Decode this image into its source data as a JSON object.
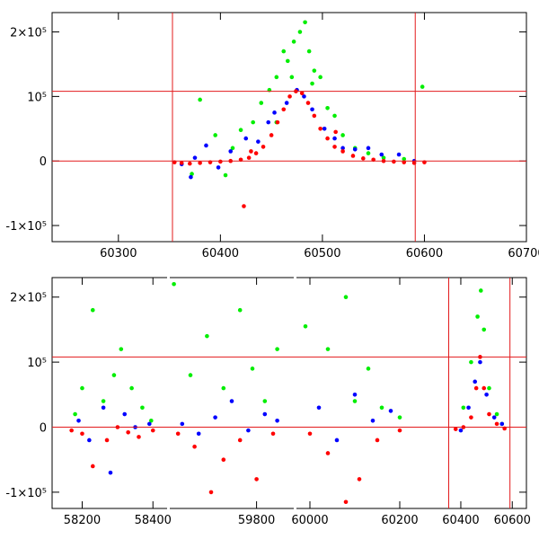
{
  "chart_data": [
    {
      "type": "scatter",
      "title": "",
      "xlabel": "",
      "ylabel": "",
      "xlim": [
        60235,
        60700
      ],
      "ylim": [
        -125000,
        230000
      ],
      "x_ticks": [
        60300,
        60400,
        60500,
        60600,
        60700
      ],
      "y_ticks": [
        {
          "value": -100000,
          "label": "-1×10⁵"
        },
        {
          "value": 0,
          "label": "0"
        },
        {
          "value": 100000,
          "label": "10⁵"
        },
        {
          "value": 200000,
          "label": "2×10⁵"
        }
      ],
      "hlines": [
        0,
        108000
      ],
      "vlines": [
        60353,
        60591
      ],
      "grid": false,
      "series": [
        {
          "color": "#00ee00",
          "points": [
            [
              60372,
              -20000
            ],
            [
              60380,
              95000
            ],
            [
              60395,
              40000
            ],
            [
              60405,
              -22000
            ],
            [
              60412,
              20000
            ],
            [
              60420,
              48000
            ],
            [
              60432,
              60000
            ],
            [
              60440,
              90000
            ],
            [
              60448,
              110000
            ],
            [
              60455,
              130000
            ],
            [
              60462,
              170000
            ],
            [
              60466,
              155000
            ],
            [
              60472,
              185000
            ],
            [
              60478,
              200000
            ],
            [
              60483,
              215000
            ],
            [
              60487,
              170000
            ],
            [
              60492,
              140000
            ],
            [
              60498,
              130000
            ],
            [
              60505,
              82000
            ],
            [
              60512,
              70000
            ],
            [
              60520,
              40000
            ],
            [
              60532,
              20000
            ],
            [
              60545,
              12000
            ],
            [
              60560,
              5000
            ],
            [
              60580,
              3000
            ],
            [
              60598,
              115000
            ],
            [
              60455,
              60000
            ],
            [
              60470,
              130000
            ],
            [
              60490,
              120000
            ]
          ]
        },
        {
          "color": "#0000ff",
          "points": [
            [
              60362,
              -5000
            ],
            [
              60375,
              5000
            ],
            [
              60386,
              24000
            ],
            [
              60398,
              -10000
            ],
            [
              60410,
              15000
            ],
            [
              60425,
              35000
            ],
            [
              60437,
              30000
            ],
            [
              60447,
              60000
            ],
            [
              60453,
              75000
            ],
            [
              60465,
              90000
            ],
            [
              60475,
              110000
            ],
            [
              60482,
              100000
            ],
            [
              60490,
              80000
            ],
            [
              60502,
              50000
            ],
            [
              60512,
              35000
            ],
            [
              60520,
              20000
            ],
            [
              60532,
              18000
            ],
            [
              60545,
              20000
            ],
            [
              60558,
              10000
            ],
            [
              60575,
              10000
            ],
            [
              60590,
              0
            ],
            [
              60371,
              -25000
            ]
          ]
        },
        {
          "color": "#ff0000",
          "points": [
            [
              60355,
              -2000
            ],
            [
              60362,
              -3000
            ],
            [
              60370,
              -4000
            ],
            [
              60380,
              -3000
            ],
            [
              60390,
              -2000
            ],
            [
              60400,
              -1000
            ],
            [
              60410,
              0
            ],
            [
              60420,
              2000
            ],
            [
              60428,
              5000
            ],
            [
              60435,
              12000
            ],
            [
              60442,
              22000
            ],
            [
              60450,
              40000
            ],
            [
              60456,
              60000
            ],
            [
              60462,
              80000
            ],
            [
              60468,
              100000
            ],
            [
              60474,
              108000
            ],
            [
              60480,
              105000
            ],
            [
              60486,
              90000
            ],
            [
              60492,
              70000
            ],
            [
              60498,
              50000
            ],
            [
              60505,
              35000
            ],
            [
              60512,
              22000
            ],
            [
              60520,
              15000
            ],
            [
              60530,
              8000
            ],
            [
              60540,
              4000
            ],
            [
              60550,
              2000
            ],
            [
              60560,
              0
            ],
            [
              60570,
              -1000
            ],
            [
              60580,
              -2000
            ],
            [
              60590,
              -3000
            ],
            [
              60600,
              -2000
            ],
            [
              60423,
              -70000
            ],
            [
              60430,
              15000
            ],
            [
              60513,
              45000
            ]
          ]
        }
      ]
    },
    {
      "type": "scatter",
      "title": "",
      "xlabel": "",
      "ylabel": "",
      "xlim": [
        58115,
        60655
      ],
      "ylim": [
        -125000,
        230000
      ],
      "x_ticks": [
        {
          "value": 58200,
          "label": "58200"
        },
        {
          "value": 58400,
          "label": "58400"
        },
        {
          "value": 59800,
          "label": "59800"
        },
        {
          "value": 60000,
          "label": "60000"
        },
        {
          "value": 60200,
          "label": "60200"
        },
        {
          "value": 60400,
          "label": "60400"
        },
        {
          "value": 60600,
          "label": "60600"
        }
      ],
      "y_ticks": [
        {
          "value": -100000,
          "label": "-1×10⁵"
        },
        {
          "value": 0,
          "label": "0"
        },
        {
          "value": 100000,
          "label": "10⁵"
        },
        {
          "value": 200000,
          "label": "2×10⁵"
        }
      ],
      "hlines": [
        0,
        108000
      ],
      "vlines": [
        60353,
        60591
      ],
      "grid": false,
      "series": [
        {
          "color": "#00ee00",
          "points": [
            [
              58180,
              20000
            ],
            [
              58200,
              60000
            ],
            [
              58230,
              180000
            ],
            [
              58260,
              40000
            ],
            [
              58290,
              80000
            ],
            [
              58310,
              120000
            ],
            [
              58340,
              60000
            ],
            [
              58370,
              30000
            ],
            [
              58395,
              10000
            ],
            [
              59600,
              220000
            ],
            [
              59640,
              80000
            ],
            [
              59680,
              140000
            ],
            [
              59720,
              60000
            ],
            [
              59760,
              180000
            ],
            [
              59790,
              90000
            ],
            [
              59820,
              40000
            ],
            [
              59850,
              120000
            ],
            [
              59990,
              155000
            ],
            [
              60040,
              120000
            ],
            [
              60080,
              200000
            ],
            [
              60100,
              40000
            ],
            [
              60130,
              90000
            ],
            [
              60160,
              30000
            ],
            [
              60200,
              15000
            ],
            [
              60410,
              30000
            ],
            [
              60440,
              100000
            ],
            [
              60465,
              170000
            ],
            [
              60478,
              210000
            ],
            [
              60490,
              150000
            ],
            [
              60510,
              60000
            ],
            [
              60540,
              20000
            ],
            [
              60560,
              5000
            ]
          ]
        },
        {
          "color": "#0000ff",
          "points": [
            [
              58190,
              10000
            ],
            [
              58220,
              -20000
            ],
            [
              58260,
              30000
            ],
            [
              58280,
              -70000
            ],
            [
              58320,
              20000
            ],
            [
              58350,
              0
            ],
            [
              58390,
              5000
            ],
            [
              59620,
              5000
            ],
            [
              59660,
              -10000
            ],
            [
              59700,
              15000
            ],
            [
              59740,
              40000
            ],
            [
              59780,
              -5000
            ],
            [
              59820,
              20000
            ],
            [
              59850,
              10000
            ],
            [
              60020,
              30000
            ],
            [
              60060,
              -20000
            ],
            [
              60100,
              50000
            ],
            [
              60140,
              10000
            ],
            [
              60180,
              25000
            ],
            [
              60400,
              -5000
            ],
            [
              60430,
              30000
            ],
            [
              60455,
              70000
            ],
            [
              60475,
              100000
            ],
            [
              60500,
              50000
            ],
            [
              60530,
              15000
            ],
            [
              60560,
              5000
            ]
          ]
        },
        {
          "color": "#ff0000",
          "points": [
            [
              58170,
              -5000
            ],
            [
              58200,
              -10000
            ],
            [
              58230,
              -60000
            ],
            [
              58270,
              -20000
            ],
            [
              58300,
              0
            ],
            [
              58330,
              -8000
            ],
            [
              58360,
              -15000
            ],
            [
              58400,
              -5000
            ],
            [
              59610,
              -10000
            ],
            [
              59650,
              -30000
            ],
            [
              59690,
              -100000
            ],
            [
              59720,
              -50000
            ],
            [
              59760,
              -20000
            ],
            [
              59800,
              -80000
            ],
            [
              59840,
              -10000
            ],
            [
              60000,
              -10000
            ],
            [
              60040,
              -40000
            ],
            [
              60080,
              -115000
            ],
            [
              60110,
              -80000
            ],
            [
              60150,
              -20000
            ],
            [
              60200,
              -5000
            ],
            [
              60380,
              -3000
            ],
            [
              60410,
              0
            ],
            [
              60440,
              15000
            ],
            [
              60460,
              60000
            ],
            [
              60475,
              108000
            ],
            [
              60490,
              60000
            ],
            [
              60510,
              20000
            ],
            [
              60540,
              5000
            ],
            [
              60570,
              -2000
            ]
          ]
        }
      ]
    }
  ]
}
